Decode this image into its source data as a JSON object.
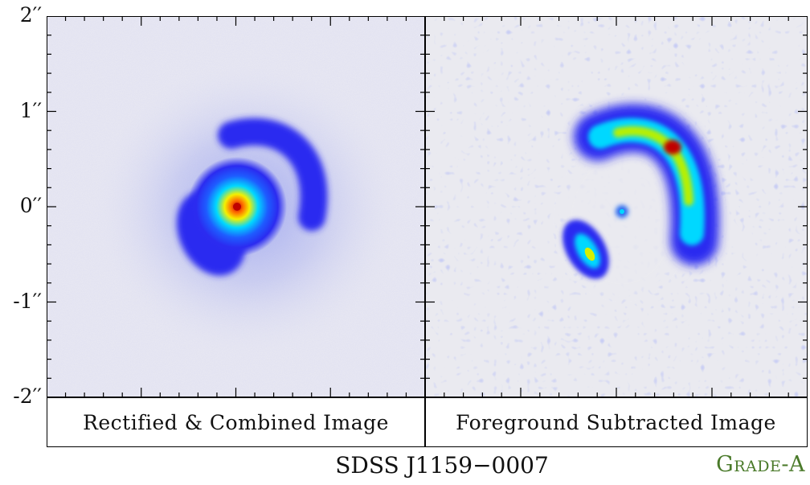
{
  "figure": {
    "y_ticks": [
      "2′′",
      "1′′",
      "0′′",
      "-1′′",
      "-2′′"
    ],
    "left_caption": "Rectified & Combined Image",
    "right_caption": "Foreground Subtracted Image",
    "object_name": "SDSS J1159−0007",
    "grade": "Grade-A"
  },
  "colors": {
    "background_noise": "#e9e9f2",
    "blue": "#2b2bf0",
    "cyan": "#00d8ff",
    "yellow": "#f4f000",
    "red": "#c00000",
    "grade_text": "#4a7a2a"
  }
}
